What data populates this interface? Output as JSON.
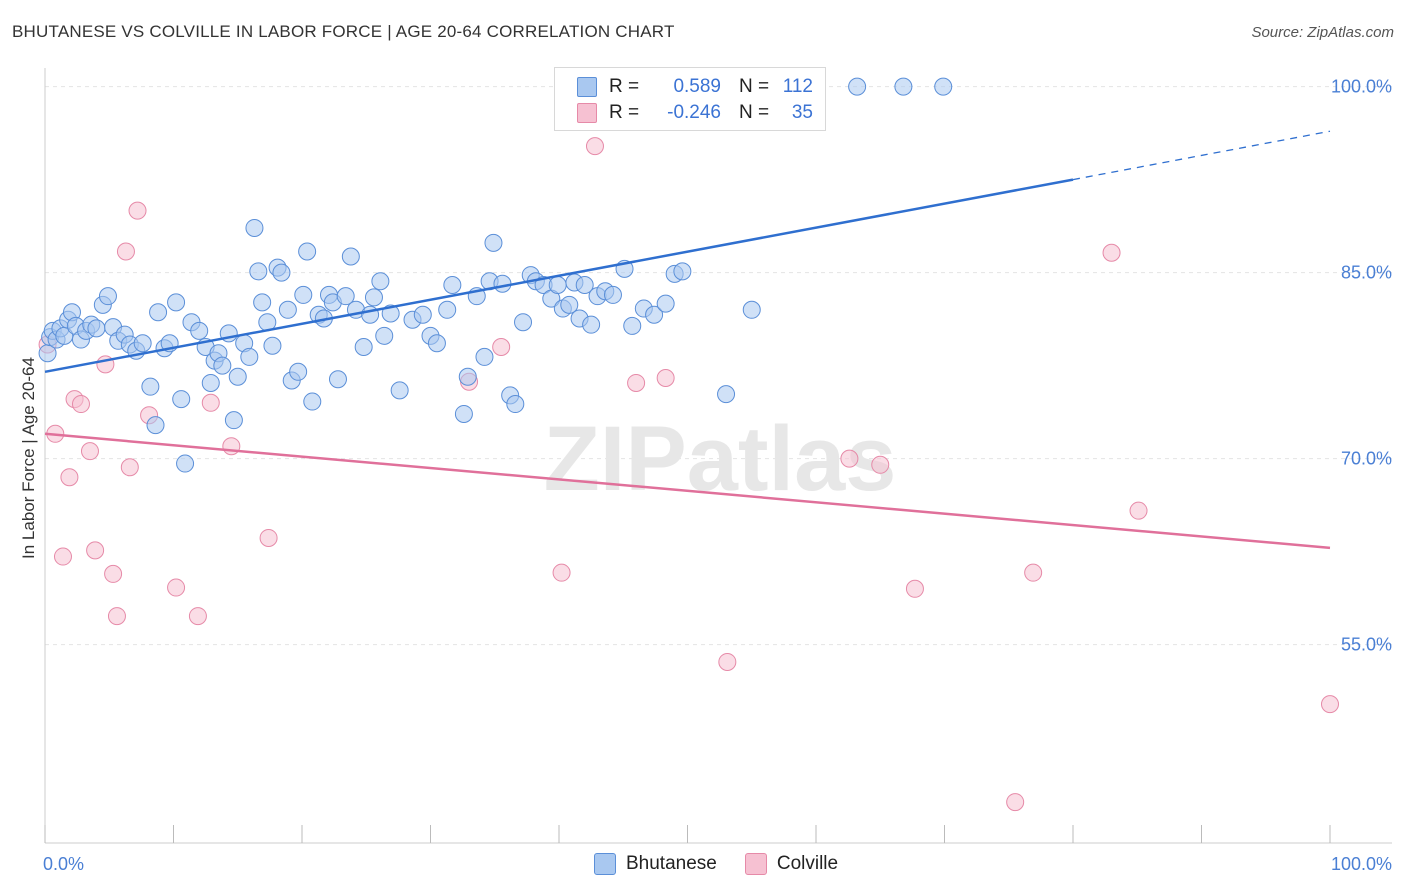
{
  "title": "BHUTANESE VS COLVILLE IN LABOR FORCE | AGE 20-64 CORRELATION CHART",
  "source": "Source: ZipAtlas.com",
  "watermark": "ZIPatlas",
  "legend_box": {
    "rows": [
      {
        "r_label": "R =",
        "r_value": "0.589",
        "n_label": "N =",
        "n_value": "112"
      },
      {
        "r_label": "R =",
        "r_value": "-0.246",
        "n_label": "N =",
        "n_value": "35"
      }
    ]
  },
  "colors": {
    "bhutanese_fill": "#a9c8f0",
    "bhutanese_stroke": "#5b8fd8",
    "bhutanese_line": "#2f6fcf",
    "colville_fill": "#f6c1d2",
    "colville_stroke": "#e68aa8",
    "colville_line": "#e0709a",
    "axis_text": "#4a7fd4",
    "grid": "#e4e4e4"
  },
  "chart_data": {
    "type": "scatter",
    "title": "BHUTANESE VS COLVILLE IN LABOR FORCE | AGE 20-64 CORRELATION CHART",
    "xlabel": "",
    "ylabel": "In Labor Force | Age 20-64",
    "xlim": [
      0,
      100
    ],
    "ylim": [
      39,
      101.5
    ],
    "x_tick_labels": [
      "0.0%",
      "100.0%"
    ],
    "y_ticks": [
      55,
      70,
      85,
      100
    ],
    "y_tick_labels": [
      "55.0%",
      "70.0%",
      "85.0%",
      "100.0%"
    ],
    "grid": true,
    "legend_placement": "bottom-center",
    "series": [
      {
        "name": "Bhutanese",
        "r": 0.589,
        "n": 112,
        "trend": {
          "x0": 0,
          "y0": 77.0,
          "x1": 80,
          "y1": 92.5,
          "dashed_to_x": 100,
          "dashed_to_y": 96.4
        },
        "points": [
          [
            0.2,
            78.5
          ],
          [
            0.4,
            79.8
          ],
          [
            0.6,
            80.3
          ],
          [
            0.9,
            79.6
          ],
          [
            1.2,
            80.5
          ],
          [
            1.5,
            79.9
          ],
          [
            1.8,
            81.2
          ],
          [
            2.1,
            81.8
          ],
          [
            2.4,
            80.7
          ],
          [
            2.8,
            79.6
          ],
          [
            3.2,
            80.3
          ],
          [
            3.6,
            80.8
          ],
          [
            4.0,
            80.5
          ],
          [
            4.5,
            82.4
          ],
          [
            4.9,
            83.1
          ],
          [
            5.3,
            80.6
          ],
          [
            5.7,
            79.5
          ],
          [
            6.2,
            80.0
          ],
          [
            6.6,
            79.2
          ],
          [
            7.1,
            78.7
          ],
          [
            7.6,
            79.3
          ],
          [
            8.2,
            75.8
          ],
          [
            8.6,
            72.7
          ],
          [
            8.8,
            81.8
          ],
          [
            9.3,
            78.9
          ],
          [
            9.7,
            79.3
          ],
          [
            10.2,
            82.6
          ],
          [
            10.6,
            74.8
          ],
          [
            10.9,
            69.6
          ],
          [
            11.4,
            81.0
          ],
          [
            12.0,
            80.3
          ],
          [
            12.5,
            79.0
          ],
          [
            12.9,
            76.1
          ],
          [
            13.2,
            77.9
          ],
          [
            13.5,
            78.5
          ],
          [
            13.8,
            77.5
          ],
          [
            14.3,
            80.1
          ],
          [
            14.7,
            73.1
          ],
          [
            15.0,
            76.6
          ],
          [
            15.5,
            79.3
          ],
          [
            15.9,
            78.2
          ],
          [
            16.3,
            88.6
          ],
          [
            16.6,
            85.1
          ],
          [
            16.9,
            82.6
          ],
          [
            17.3,
            81.0
          ],
          [
            17.7,
            79.1
          ],
          [
            18.1,
            85.4
          ],
          [
            18.4,
            85.0
          ],
          [
            18.9,
            82.0
          ],
          [
            19.2,
            76.3
          ],
          [
            19.7,
            77.0
          ],
          [
            20.1,
            83.2
          ],
          [
            20.4,
            86.7
          ],
          [
            20.8,
            74.6
          ],
          [
            21.3,
            81.6
          ],
          [
            21.7,
            81.3
          ],
          [
            22.1,
            83.2
          ],
          [
            22.4,
            82.6
          ],
          [
            22.8,
            76.4
          ],
          [
            23.4,
            83.1
          ],
          [
            23.8,
            86.3
          ],
          [
            24.2,
            82.0
          ],
          [
            24.8,
            79.0
          ],
          [
            25.3,
            81.6
          ],
          [
            25.6,
            83.0
          ],
          [
            26.1,
            84.3
          ],
          [
            26.4,
            79.9
          ],
          [
            26.9,
            81.7
          ],
          [
            27.6,
            75.5
          ],
          [
            28.6,
            81.2
          ],
          [
            29.4,
            81.6
          ],
          [
            30.0,
            79.9
          ],
          [
            30.5,
            79.3
          ],
          [
            31.3,
            82.0
          ],
          [
            31.7,
            84.0
          ],
          [
            32.6,
            73.6
          ],
          [
            32.9,
            76.6
          ],
          [
            33.6,
            83.1
          ],
          [
            34.2,
            78.2
          ],
          [
            34.6,
            84.3
          ],
          [
            34.9,
            87.4
          ],
          [
            35.6,
            84.1
          ],
          [
            36.2,
            75.1
          ],
          [
            36.6,
            74.4
          ],
          [
            37.2,
            81.0
          ],
          [
            37.8,
            84.8
          ],
          [
            38.2,
            84.3
          ],
          [
            38.8,
            84.0
          ],
          [
            39.4,
            82.9
          ],
          [
            39.9,
            84.0
          ],
          [
            40.3,
            82.1
          ],
          [
            40.8,
            82.4
          ],
          [
            41.2,
            84.2
          ],
          [
            41.6,
            81.3
          ],
          [
            42.0,
            84.0
          ],
          [
            42.5,
            80.8
          ],
          [
            43.0,
            83.1
          ],
          [
            43.6,
            83.5
          ],
          [
            44.2,
            83.2
          ],
          [
            45.1,
            85.3
          ],
          [
            45.7,
            80.7
          ],
          [
            46.6,
            82.1
          ],
          [
            47.4,
            81.6
          ],
          [
            48.3,
            82.5
          ],
          [
            49.0,
            84.9
          ],
          [
            49.6,
            85.1
          ],
          [
            53.0,
            75.2
          ],
          [
            55.0,
            82.0
          ],
          [
            59.7,
            100.1
          ],
          [
            63.2,
            100.0
          ],
          [
            66.8,
            100.0
          ],
          [
            69.9,
            100.0
          ]
        ]
      },
      {
        "name": "Colville",
        "r": -0.246,
        "n": 35,
        "trend": {
          "x0": 0,
          "y0": 72.0,
          "x1": 100,
          "y1": 62.8
        },
        "points": [
          [
            0.2,
            79.2
          ],
          [
            0.8,
            72.0
          ],
          [
            1.4,
            62.1
          ],
          [
            1.9,
            68.5
          ],
          [
            2.3,
            74.8
          ],
          [
            2.8,
            74.4
          ],
          [
            3.5,
            70.6
          ],
          [
            3.9,
            62.6
          ],
          [
            4.7,
            77.6
          ],
          [
            5.3,
            60.7
          ],
          [
            5.6,
            57.3
          ],
          [
            6.3,
            86.7
          ],
          [
            6.6,
            69.3
          ],
          [
            7.2,
            90.0
          ],
          [
            8.1,
            73.5
          ],
          [
            10.2,
            59.6
          ],
          [
            11.9,
            57.3
          ],
          [
            12.9,
            74.5
          ],
          [
            14.5,
            71.0
          ],
          [
            17.4,
            63.6
          ],
          [
            33.0,
            76.2
          ],
          [
            35.5,
            79.0
          ],
          [
            40.2,
            60.8
          ],
          [
            42.8,
            95.2
          ],
          [
            46.0,
            76.1
          ],
          [
            48.3,
            76.5
          ],
          [
            53.1,
            53.6
          ],
          [
            62.6,
            70.0
          ],
          [
            65.0,
            69.5
          ],
          [
            67.7,
            59.5
          ],
          [
            75.5,
            42.3
          ],
          [
            76.9,
            60.8
          ],
          [
            83.0,
            86.6
          ],
          [
            85.1,
            65.8
          ],
          [
            100.0,
            50.2
          ]
        ]
      }
    ]
  }
}
